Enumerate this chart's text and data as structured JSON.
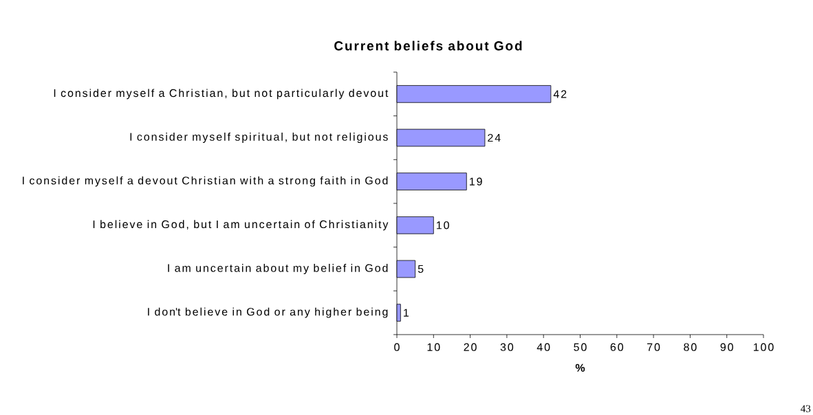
{
  "chart_data": {
    "type": "bar",
    "orientation": "horizontal",
    "title": "Current beliefs about God",
    "xlabel": "%",
    "categories": [
      "I consider myself a Christian, but not particularly devout",
      "I consider myself spiritual, but not religious",
      "I consider myself a devout Christian with a strong faith in God",
      "I believe in God, but I am uncertain of Christianity",
      "I am uncertain about my belief in God",
      "I don't believe in God or any higher being"
    ],
    "values": [
      42,
      24,
      19,
      10,
      5,
      1
    ],
    "color": "#9999ff",
    "data_labels": true,
    "xlim": [
      0,
      100
    ],
    "xticks": [
      0,
      10,
      20,
      30,
      40,
      50,
      60,
      70,
      80,
      90,
      100
    ],
    "grid": false,
    "annotations": [
      "43"
    ]
  }
}
